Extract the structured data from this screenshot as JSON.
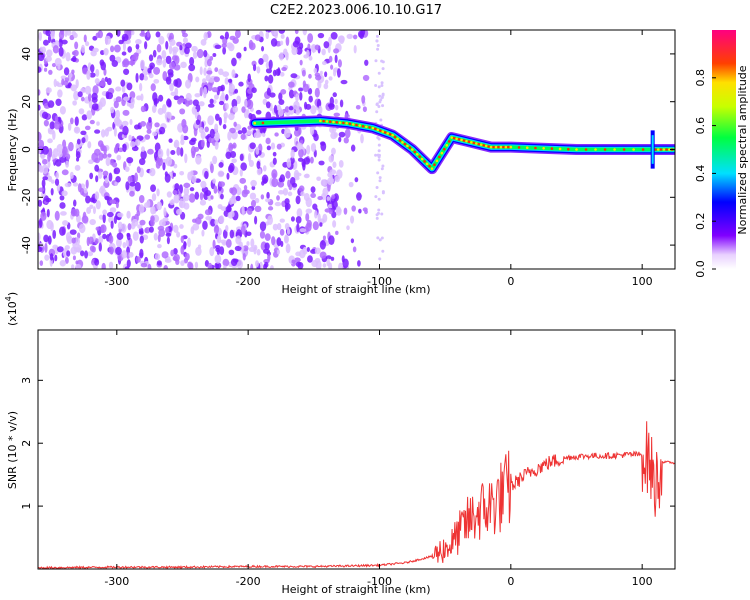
{
  "title": "C2E2.2023.006.10.10.G17",
  "chart_data": [
    {
      "type": "heatmap",
      "xlabel": "Height of straight line (km)",
      "ylabel": "Frequency (Hz)",
      "xlim": [
        -360,
        125
      ],
      "ylim": [
        -50,
        50
      ],
      "x_ticks": [
        -300,
        -200,
        -100,
        0,
        100
      ],
      "y_ticks": [
        -40,
        -20,
        0,
        20,
        40
      ],
      "colorbar": {
        "label": "Normalized spectral amplitude",
        "range": [
          0.0,
          1.0
        ],
        "ticks": [
          "0.0",
          "0.2",
          "0.4",
          "0.6",
          "0.8"
        ]
      },
      "features": {
        "noise_region_x": [
          -360,
          -130
        ],
        "doppler_track": [
          {
            "x": -195,
            "y": 11
          },
          {
            "x": -145,
            "y": 12
          },
          {
            "x": -125,
            "y": 11
          },
          {
            "x": -105,
            "y": 9
          },
          {
            "x": -90,
            "y": 6
          },
          {
            "x": -75,
            "y": 0
          },
          {
            "x": -60,
            "y": -8
          },
          {
            "x": -45,
            "y": 5
          },
          {
            "x": -30,
            "y": 3
          },
          {
            "x": -15,
            "y": 1
          },
          {
            "x": 0,
            "y": 1
          },
          {
            "x": 50,
            "y": 0
          },
          {
            "x": 108,
            "y": 0
          },
          {
            "x": 125,
            "y": 0
          }
        ]
      }
    },
    {
      "type": "line",
      "xlabel": "Height of straight line (km)",
      "ylabel": "SNR (10 * v/v)",
      "y_scale_label": "(x10",
      "y_scale_exp": "4",
      "y_scale_close": ")",
      "xlim": [
        -360,
        125
      ],
      "ylim": [
        0,
        3.8
      ],
      "x_ticks": [
        -300,
        -200,
        -100,
        0,
        100
      ],
      "y_ticks": [
        1,
        2,
        3
      ],
      "series": [
        {
          "color": "#ee3333",
          "x": [
            -360,
            -300,
            -250,
            -200,
            -150,
            -120,
            -100,
            -80,
            -60,
            -45,
            -35,
            -25,
            -15,
            -5,
            5,
            15,
            30,
            45,
            60,
            75,
            90,
            100,
            105,
            110,
            115,
            120,
            125
          ],
          "y": [
            0.02,
            0.03,
            0.03,
            0.04,
            0.04,
            0.05,
            0.06,
            0.1,
            0.2,
            0.4,
            0.7,
            0.9,
            1.0,
            1.2,
            1.4,
            1.55,
            1.7,
            1.78,
            1.8,
            1.8,
            1.82,
            1.82,
            1.75,
            1.3,
            1.7,
            1.7,
            1.68
          ]
        }
      ]
    }
  ]
}
